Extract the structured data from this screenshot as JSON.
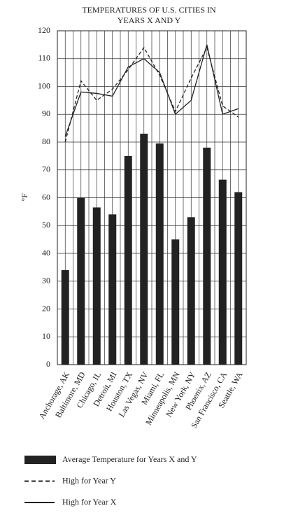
{
  "chart_data": {
    "type": "bar",
    "title": [
      "TEMPERATURES OF U.S. CITIES IN",
      "YEARS X AND Y"
    ],
    "y_label": "°F",
    "categories": [
      "Anchorage, AK",
      "Baltimore, MD",
      "Chicago, IL",
      "Detroit, MI",
      "Houston, TX",
      "Las Vegas, NV",
      "Miami, FL",
      "Minneapolis, MN",
      "New York, NY",
      "Phoenix, AZ",
      "San Francisco, CA",
      "Seattle, WA"
    ],
    "series": [
      {
        "name": "Average Temperature for Years X and Y",
        "type": "bar",
        "color": "#222222",
        "values": [
          34,
          60,
          56.5,
          54,
          75,
          83,
          79.5,
          45,
          53,
          78,
          66.5,
          62
        ]
      },
      {
        "name": "High for Year Y",
        "type": "line",
        "dashed": true,
        "color": "#222222",
        "values": [
          80,
          102,
          95,
          99,
          106,
          114,
          104,
          91,
          103,
          114,
          93,
          89
        ]
      },
      {
        "name": "High for Year X",
        "type": "line",
        "dashed": false,
        "color": "#222222",
        "values": [
          82,
          98,
          97.5,
          96.5,
          107,
          110,
          105,
          90,
          95,
          115,
          90,
          92
        ]
      }
    ],
    "ylim": [
      0,
      120
    ],
    "yticks": [
      0,
      10,
      20,
      30,
      40,
      50,
      60,
      70,
      80,
      90,
      100,
      110,
      120
    ],
    "grid": true
  }
}
